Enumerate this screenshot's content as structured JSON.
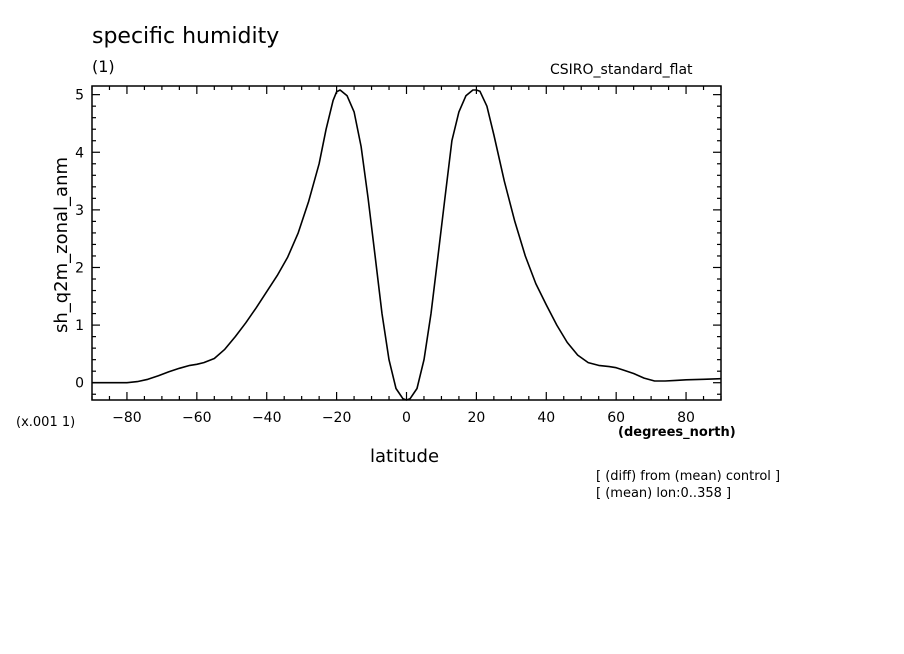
{
  "chart_data": {
    "type": "line",
    "title": "specific humidity",
    "units": "(1)",
    "model_label": "CSIRO_standard_flat",
    "xlabel": "latitude",
    "x_units": "(degrees_north)",
    "ylabel": "sh_q2m_zonal_anm",
    "y_scale_note": "(x.001 1)",
    "annotations": [
      "[ (diff) from (mean) control ]",
      "[ (mean) lon:0..358 ]"
    ],
    "xlim": [
      -90,
      90
    ],
    "ylim": [
      -0.3,
      5.15
    ],
    "x_ticks": [
      -80,
      -60,
      -40,
      -20,
      0,
      20,
      40,
      60,
      80
    ],
    "x_tick_labels": [
      "−80",
      "−60",
      "−40",
      "−20",
      "0",
      "20",
      "40",
      "60",
      "80"
    ],
    "y_ticks": [
      0,
      1,
      2,
      3,
      4,
      5
    ],
    "y_tick_labels": [
      "0",
      "1",
      "2",
      "3",
      "4",
      "5"
    ],
    "grid": false,
    "series": [
      {
        "x": [
          -90,
          -85,
          -80,
          -77,
          -74,
          -71,
          -68,
          -65,
          -62,
          -60,
          -58,
          -55,
          -52,
          -49,
          -46,
          -43,
          -40,
          -37,
          -34,
          -31,
          -28,
          -25,
          -23,
          -21,
          -20,
          -19,
          -17,
          -15,
          -13,
          -11,
          -9,
          -7,
          -5,
          -3,
          -1,
          0,
          1,
          3,
          5,
          7,
          9,
          11,
          13,
          15,
          17,
          19,
          20,
          21,
          23,
          25,
          28,
          31,
          34,
          37,
          40,
          43,
          46,
          49,
          52,
          55,
          58,
          60,
          62,
          65,
          68,
          71,
          74,
          77,
          80,
          85,
          90
        ],
        "y": [
          0.0,
          0.0,
          0.0,
          0.02,
          0.06,
          0.12,
          0.19,
          0.25,
          0.3,
          0.32,
          0.35,
          0.42,
          0.58,
          0.8,
          1.04,
          1.3,
          1.58,
          1.86,
          2.18,
          2.6,
          3.15,
          3.8,
          4.4,
          4.9,
          5.05,
          5.08,
          4.98,
          4.7,
          4.1,
          3.2,
          2.2,
          1.2,
          0.4,
          -0.1,
          -0.28,
          -0.3,
          -0.28,
          -0.1,
          0.4,
          1.2,
          2.2,
          3.2,
          4.2,
          4.7,
          4.98,
          5.08,
          5.08,
          5.06,
          4.8,
          4.3,
          3.5,
          2.8,
          2.2,
          1.72,
          1.35,
          1.0,
          0.7,
          0.48,
          0.35,
          0.3,
          0.28,
          0.26,
          0.22,
          0.16,
          0.08,
          0.03,
          0.03,
          0.04,
          0.05,
          0.06,
          0.07
        ]
      }
    ]
  }
}
